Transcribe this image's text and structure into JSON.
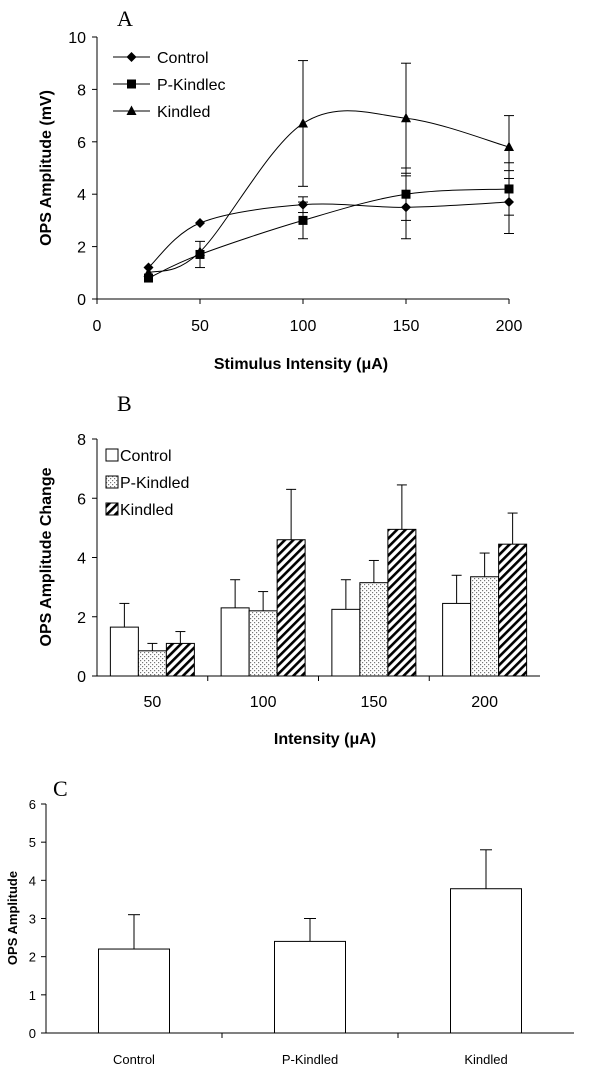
{
  "chart_data": [
    {
      "panel": "A",
      "type": "line",
      "xlabel": "Stimulus Intensity (μA)",
      "ylabel": "OPS Amplitude (mV)",
      "xlim": [
        0,
        200
      ],
      "ylim": [
        0,
        10
      ],
      "xticks": [
        "0",
        "50",
        "100",
        "150",
        "200"
      ],
      "yticks": [
        "0",
        "2",
        "4",
        "6",
        "8",
        "10"
      ],
      "legend_position": "top-left",
      "x": [
        25,
        50,
        100,
        150,
        200
      ],
      "series": [
        {
          "name": "Control",
          "marker": "diamond",
          "values": [
            1.2,
            2.9,
            3.6,
            3.5,
            3.7
          ],
          "error": [
            0,
            0,
            0.3,
            1.2,
            1.2
          ]
        },
        {
          "name": "P-Kindlec",
          "marker": "square",
          "values": [
            0.8,
            1.7,
            3.0,
            4.0,
            4.2
          ],
          "error": [
            0,
            0.5,
            0.7,
            1.0,
            1.0
          ]
        },
        {
          "name": "Kindled",
          "marker": "triangle",
          "values": [
            1.0,
            1.8,
            6.7,
            6.9,
            5.8
          ],
          "error": [
            0,
            0,
            2.4,
            2.1,
            1.2
          ]
        }
      ]
    },
    {
      "panel": "B",
      "type": "bar",
      "xlabel": "Intensity (μA)",
      "ylabel": "OPS Amplitude Change",
      "ylim": [
        0,
        8
      ],
      "yticks": [
        "0",
        "2",
        "4",
        "6",
        "8"
      ],
      "legend_position": "top-left",
      "categories": [
        "50",
        "100",
        "150",
        "200"
      ],
      "series": [
        {
          "name": "Control",
          "pattern": "white",
          "values": [
            1.65,
            2.3,
            2.25,
            2.45
          ],
          "error": [
            0.8,
            0.95,
            1.0,
            0.95
          ]
        },
        {
          "name": "P-Kindled",
          "pattern": "dotted",
          "values": [
            0.85,
            2.2,
            3.15,
            3.35
          ],
          "error": [
            0.25,
            0.65,
            0.75,
            0.8
          ]
        },
        {
          "name": "Kindled",
          "pattern": "hatched",
          "values": [
            1.1,
            4.6,
            4.95,
            4.45
          ],
          "error": [
            0.4,
            1.7,
            1.5,
            1.05
          ]
        }
      ]
    },
    {
      "panel": "C",
      "type": "bar",
      "xlabel": "",
      "ylabel": "OPS Amplitude",
      "ylim": [
        0,
        6
      ],
      "yticks": [
        "0",
        "1",
        "2",
        "3",
        "4",
        "5",
        "6"
      ],
      "categories": [
        "Control",
        "P-Kindled",
        "Kindled"
      ],
      "values": [
        2.2,
        2.4,
        3.78
      ],
      "error": [
        0.9,
        0.6,
        1.02
      ]
    }
  ]
}
